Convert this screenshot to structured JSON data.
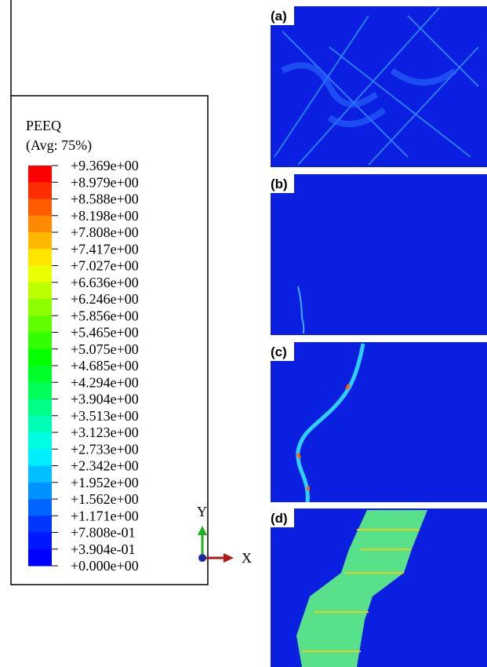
{
  "legend": {
    "title": "PEEQ",
    "subtitle": "(Avg: 75%)",
    "labels": [
      "+9.369e+00",
      "+8.979e+00",
      "+8.588e+00",
      "+8.198e+00",
      "+7.808e+00",
      "+7.417e+00",
      "+7.027e+00",
      "+6.636e+00",
      "+6.246e+00",
      "+5.856e+00",
      "+5.465e+00",
      "+5.075e+00",
      "+4.685e+00",
      "+4.294e+00",
      "+3.904e+00",
      "+3.513e+00",
      "+3.123e+00",
      "+2.733e+00",
      "+2.342e+00",
      "+1.952e+00",
      "+1.562e+00",
      "+1.171e+00",
      "+7.808e-01",
      "+3.904e-01",
      "+0.000e+00"
    ],
    "colors": [
      "#ff0000",
      "#ff2e00",
      "#ff5c00",
      "#ff8a00",
      "#ffb800",
      "#ffe600",
      "#eaff00",
      "#bcff00",
      "#8eff00",
      "#60ff00",
      "#32ff00",
      "#04ff00",
      "#00ff2a",
      "#00ff58",
      "#00ff86",
      "#00ffb4",
      "#00ffe2",
      "#00eeff",
      "#00c0ff",
      "#0092ff",
      "#0064ff",
      "#0036ff",
      "#0018ff",
      "#0000ff"
    ]
  },
  "triad": {
    "y_label": "Y",
    "x_label": "X"
  },
  "panels": [
    {
      "label": "(a)"
    },
    {
      "label": "(b)"
    },
    {
      "label": "(c)"
    },
    {
      "label": "(d)"
    }
  ]
}
